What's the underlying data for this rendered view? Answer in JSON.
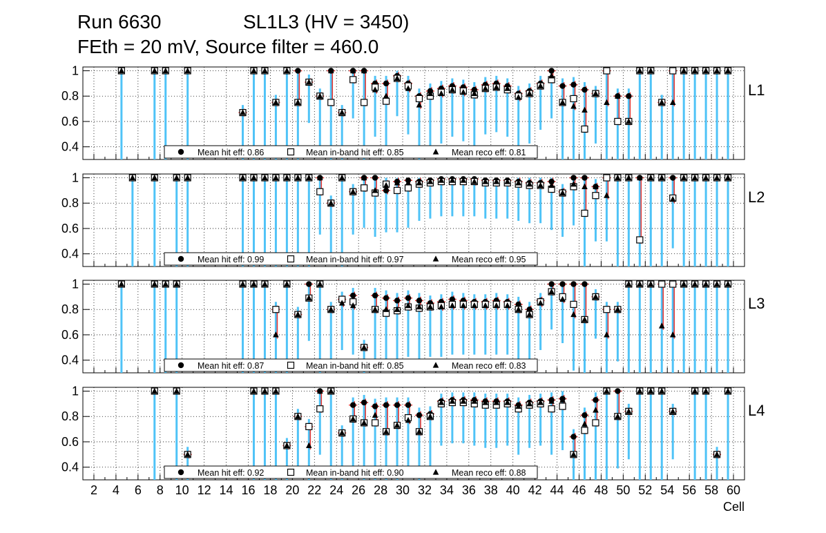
{
  "header": {
    "run": "Run 6630",
    "chamber": "SL1L3 (HV = 3450)",
    "settings": "FEth = 20 mV, Source filter = 460.0"
  },
  "colors": {
    "band": "#4fc3f7",
    "error": "#e53935",
    "errorLow": "#7b1fa2",
    "marker": "#000000",
    "grid": "#000000"
  },
  "chart_data": {
    "type": "scatter",
    "xlabel": "Cell",
    "xlim": [
      1,
      61
    ],
    "ylim": [
      0.3,
      1.03
    ],
    "xticks": [
      "2",
      "4",
      "6",
      "8",
      "10",
      "12",
      "14",
      "16",
      "18",
      "20",
      "22",
      "24",
      "26",
      "28",
      "30",
      "32",
      "34",
      "36",
      "38",
      "40",
      "42",
      "44",
      "46",
      "48",
      "50",
      "52",
      "54",
      "56",
      "58",
      "60"
    ],
    "yticks": [
      "0.4",
      "0.6",
      "0.8",
      "1"
    ],
    "grid": true,
    "panels": [
      {
        "label": "L1",
        "legend": {
          "hit": "Mean hit  eff: 0.86",
          "band": "Mean in-band hit eff: 0.85",
          "reco": "Mean reco eff: 0.81"
        },
        "cells": [
          4.5,
          7.5,
          8.5,
          10.5,
          15.5,
          16.5,
          17.5,
          18.5,
          19.5,
          20.5,
          21.5,
          22.5,
          23.5,
          24.5,
          25.5,
          26.5,
          27.5,
          28.5,
          29.5,
          30.5,
          31.5,
          32.5,
          33.5,
          34.5,
          35.5,
          36.5,
          37.5,
          38.5,
          39.5,
          40.5,
          41.5,
          42.5,
          43.5,
          44.5,
          45.5,
          46.5,
          47.5,
          48.5,
          49.5,
          50.5,
          51.5,
          52.5,
          53.5,
          54.5,
          55.5,
          56.5,
          57.5,
          58.5,
          59.5
        ],
        "hit": [
          1,
          1,
          1,
          1,
          0.67,
          1,
          1,
          0.75,
          1,
          1,
          0.91,
          0.8,
          1,
          0.67,
          1,
          1,
          0.9,
          0.9,
          0.96,
          0.9,
          0.8,
          0.84,
          0.86,
          0.88,
          0.87,
          0.85,
          0.89,
          0.9,
          0.88,
          0.82,
          0.84,
          0.9,
          1,
          0.88,
          0.89,
          0.85,
          0.82,
          1,
          0.8,
          0.8,
          1,
          1,
          0.75,
          1,
          1,
          1,
          1,
          1,
          1
        ],
        "band": [
          1,
          1,
          1,
          1,
          0.67,
          1,
          1,
          0.75,
          1,
          0.75,
          0.91,
          0.8,
          0.75,
          0.67,
          0.93,
          0.75,
          0.87,
          0.76,
          0.94,
          0.88,
          0.78,
          0.8,
          0.83,
          0.85,
          0.84,
          0.81,
          0.86,
          0.87,
          0.85,
          0.8,
          0.82,
          0.88,
          0.93,
          0.75,
          0.78,
          0.54,
          0.82,
          1,
          0.6,
          0.6,
          1,
          1,
          0.75,
          1,
          1,
          1,
          1,
          1,
          1
        ],
        "reco": [
          1,
          1,
          1,
          1,
          0.67,
          1,
          1,
          0.75,
          1,
          0.75,
          0.91,
          0.8,
          1,
          0.67,
          1,
          1,
          0.85,
          0.8,
          0.94,
          0.86,
          0.73,
          0.82,
          0.82,
          0.85,
          0.83,
          0.82,
          0.86,
          0.87,
          0.86,
          0.79,
          0.82,
          0.88,
          0.96,
          0.75,
          0.72,
          0.69,
          0.82,
          0.75,
          0.8,
          0.6,
          1,
          1,
          0.75,
          0.75,
          1,
          1,
          1,
          1,
          1
        ]
      },
      {
        "label": "L2",
        "legend": {
          "hit": "Mean hit  eff: 0.99",
          "band": "Mean in-band hit eff: 0.97",
          "reco": "Mean reco eff: 0.95"
        },
        "cells": [
          5.5,
          7.5,
          9.5,
          10.5,
          15.5,
          16.5,
          17.5,
          18.5,
          19.5,
          20.5,
          21.5,
          22.5,
          23.5,
          24.5,
          25.5,
          26.5,
          27.5,
          28.5,
          29.5,
          30.5,
          31.5,
          32.5,
          33.5,
          34.5,
          35.5,
          36.5,
          37.5,
          38.5,
          39.5,
          40.5,
          41.5,
          42.5,
          43.5,
          44.5,
          45.5,
          46.5,
          47.5,
          48.5,
          49.5,
          50.5,
          51.5,
          52.5,
          53.5,
          54.5,
          55.5,
          56.5,
          57.5,
          58.5,
          59.5
        ],
        "hit": [
          1,
          1,
          1,
          1,
          1,
          1,
          1,
          1,
          1,
          1,
          1,
          1,
          0.8,
          1,
          0.89,
          1,
          1,
          0.9,
          0.97,
          0.98,
          0.97,
          0.98,
          0.99,
          0.99,
          0.99,
          0.99,
          0.98,
          0.98,
          0.98,
          0.97,
          0.96,
          0.96,
          0.97,
          0.89,
          1,
          1,
          0.93,
          1,
          1,
          1,
          1,
          1,
          1,
          1,
          1,
          1,
          1,
          1,
          1
        ],
        "band": [
          1,
          1,
          1,
          1,
          1,
          1,
          1,
          1,
          1,
          1,
          1,
          0.89,
          0.8,
          1,
          0.89,
          0.92,
          0.88,
          0.95,
          0.9,
          0.92,
          0.95,
          0.96,
          0.97,
          0.97,
          0.97,
          0.97,
          0.96,
          0.96,
          0.96,
          0.95,
          0.94,
          0.94,
          0.91,
          0.88,
          0.93,
          0.72,
          0.86,
          1,
          1,
          1,
          0.51,
          1,
          1,
          0.84,
          1,
          1,
          1,
          1,
          1
        ],
        "reco": [
          1,
          1,
          1,
          1,
          1,
          1,
          1,
          1,
          1,
          1,
          1,
          1,
          0.8,
          1,
          0.89,
          1,
          0.9,
          0.94,
          0.96,
          0.96,
          0.96,
          0.97,
          0.98,
          0.98,
          0.98,
          0.97,
          0.97,
          0.97,
          0.97,
          0.96,
          0.95,
          0.94,
          0.94,
          0.88,
          0.95,
          0.93,
          0.93,
          0.86,
          1,
          1,
          1,
          1,
          1,
          0.83,
          1,
          1,
          1,
          1,
          1
        ]
      },
      {
        "label": "L3",
        "legend": {
          "hit": "Mean hit  eff: 0.87",
          "band": "Mean in-band hit eff: 0.85",
          "reco": "Mean reco eff: 0.83"
        },
        "cells": [
          4.5,
          7.5,
          8.5,
          9.5,
          15.5,
          16.5,
          17.5,
          18.5,
          19.5,
          20.5,
          21.5,
          22.5,
          23.5,
          24.5,
          25.5,
          26.5,
          27.5,
          28.5,
          29.5,
          30.5,
          31.5,
          32.5,
          33.5,
          34.5,
          35.5,
          36.5,
          37.5,
          38.5,
          39.5,
          40.5,
          41.5,
          42.5,
          43.5,
          44.5,
          45.5,
          46.5,
          47.5,
          48.5,
          49.5,
          50.5,
          51.5,
          52.5,
          53.5,
          54.5,
          55.5,
          56.5,
          57.5,
          58.5,
          59.5
        ],
        "hit": [
          1,
          1,
          1,
          1,
          1,
          1,
          1,
          0.8,
          1,
          0.76,
          1,
          1,
          0.8,
          0.88,
          0.91,
          0.5,
          0.91,
          0.89,
          0.87,
          0.89,
          0.87,
          0.85,
          0.86,
          0.88,
          0.87,
          0.86,
          0.86,
          0.87,
          0.86,
          0.84,
          0.8,
          0.87,
          1,
          1,
          1,
          1,
          0.9,
          0.8,
          0.8,
          1,
          1,
          1,
          1,
          1,
          1,
          1,
          1,
          1,
          1
        ],
        "band": [
          1,
          1,
          1,
          1,
          1,
          1,
          1,
          0.8,
          1,
          0.76,
          0.89,
          1,
          0.8,
          0.88,
          0.86,
          0.5,
          0.8,
          0.77,
          0.79,
          0.82,
          0.81,
          0.82,
          0.83,
          0.84,
          0.84,
          0.84,
          0.84,
          0.84,
          0.84,
          0.8,
          0.76,
          0.86,
          0.94,
          0.9,
          0.84,
          0.72,
          0.9,
          0.8,
          0.8,
          1,
          1,
          1,
          1,
          1,
          1,
          1,
          1,
          1,
          1
        ],
        "reco": [
          1,
          1,
          1,
          1,
          1,
          1,
          1,
          0.6,
          1,
          0.76,
          0.89,
          1,
          0.8,
          0.85,
          0.83,
          0.5,
          0.8,
          0.8,
          0.8,
          0.83,
          0.82,
          0.82,
          0.82,
          0.83,
          0.83,
          0.83,
          0.83,
          0.83,
          0.83,
          0.8,
          0.76,
          0.85,
          0.94,
          0.88,
          0.76,
          0.72,
          0.9,
          0.6,
          0.8,
          1,
          1,
          1,
          0.67,
          0.6,
          1,
          1,
          1,
          1,
          1
        ]
      },
      {
        "label": "L4",
        "legend": {
          "hit": "Mean hit  eff: 0.92",
          "band": "Mean in-band hit eff: 0.90",
          "reco": "Mean reco eff: 0.88"
        },
        "cells": [
          7.5,
          9.5,
          10.5,
          16.5,
          17.5,
          18.5,
          19.5,
          20.5,
          21.5,
          22.5,
          23.5,
          24.5,
          25.5,
          26.5,
          27.5,
          28.5,
          29.5,
          30.5,
          31.5,
          32.5,
          33.5,
          34.5,
          35.5,
          36.5,
          37.5,
          38.5,
          39.5,
          40.5,
          41.5,
          42.5,
          43.5,
          44.5,
          45.5,
          46.5,
          47.5,
          48.5,
          49.5,
          50.5,
          51.5,
          52.5,
          53.5,
          54.5,
          56.5,
          57.5,
          58.5,
          59.5
        ],
        "hit": [
          1,
          1,
          0.5,
          1,
          1,
          1,
          0.57,
          0.8,
          0.72,
          1,
          1,
          0.67,
          0.89,
          0.91,
          0.88,
          0.89,
          0.89,
          0.89,
          0.81,
          0.82,
          0.92,
          0.93,
          0.93,
          0.93,
          0.92,
          0.92,
          0.92,
          0.89,
          0.91,
          0.92,
          0.93,
          0.94,
          0.64,
          0.81,
          0.93,
          1,
          1,
          0.84,
          1,
          1,
          1,
          0.84,
          1,
          1,
          0.5,
          1
        ],
        "band": [
          1,
          1,
          0.5,
          1,
          1,
          1,
          0.57,
          0.8,
          0.72,
          0.86,
          1,
          0.67,
          0.78,
          0.75,
          0.75,
          0.68,
          0.73,
          0.79,
          0.68,
          0.8,
          0.9,
          0.91,
          0.91,
          0.9,
          0.89,
          0.89,
          0.9,
          0.86,
          0.89,
          0.9,
          0.86,
          0.88,
          0.5,
          0.69,
          0.75,
          1,
          0.8,
          0.84,
          1,
          1,
          1,
          0.84,
          1,
          1,
          0.5,
          1
        ],
        "reco": [
          1,
          1,
          0.5,
          1,
          1,
          1,
          0.57,
          0.8,
          0.57,
          1,
          1,
          0.67,
          0.78,
          0.75,
          0.81,
          0.68,
          0.73,
          0.77,
          0.68,
          0.8,
          0.91,
          0.92,
          0.92,
          0.92,
          0.91,
          0.91,
          0.91,
          0.88,
          0.9,
          0.91,
          0.92,
          0.93,
          0.5,
          0.74,
          0.85,
          1,
          0.8,
          0.84,
          1,
          1,
          1,
          0.84,
          1,
          1,
          0.5,
          1
        ]
      }
    ]
  }
}
